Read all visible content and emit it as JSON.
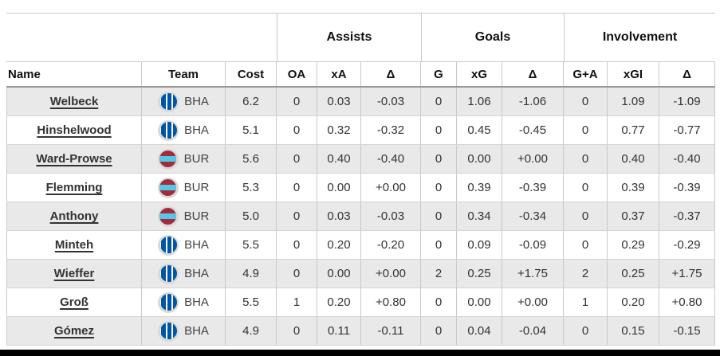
{
  "table": {
    "groups": [
      "Assists",
      "Goals",
      "Involvement"
    ],
    "columns": [
      "Name",
      "Team",
      "Cost",
      "OA",
      "xA",
      "Δ",
      "G",
      "xG",
      "Δ",
      "G+A",
      "xGI",
      "Δ"
    ],
    "rows": [
      {
        "name": "Welbeck",
        "team": "BHA",
        "cost": "6.2",
        "oa": "0",
        "xa": "0.03",
        "a_delta": "-0.03",
        "g": "0",
        "xg": "1.06",
        "g_delta": "-1.06",
        "gpa": "0",
        "xgi": "1.09",
        "i_delta": "-1.09"
      },
      {
        "name": "Hinshelwood",
        "team": "BHA",
        "cost": "5.1",
        "oa": "0",
        "xa": "0.32",
        "a_delta": "-0.32",
        "g": "0",
        "xg": "0.45",
        "g_delta": "-0.45",
        "gpa": "0",
        "xgi": "0.77",
        "i_delta": "-0.77"
      },
      {
        "name": "Ward-Prowse",
        "team": "BUR",
        "cost": "5.6",
        "oa": "0",
        "xa": "0.40",
        "a_delta": "-0.40",
        "g": "0",
        "xg": "0.00",
        "g_delta": "+0.00",
        "gpa": "0",
        "xgi": "0.40",
        "i_delta": "-0.40"
      },
      {
        "name": "Flemming",
        "team": "BUR",
        "cost": "5.3",
        "oa": "0",
        "xa": "0.00",
        "a_delta": "+0.00",
        "g": "0",
        "xg": "0.39",
        "g_delta": "-0.39",
        "gpa": "0",
        "xgi": "0.39",
        "i_delta": "-0.39"
      },
      {
        "name": "Anthony",
        "team": "BUR",
        "cost": "5.0",
        "oa": "0",
        "xa": "0.03",
        "a_delta": "-0.03",
        "g": "0",
        "xg": "0.34",
        "g_delta": "-0.34",
        "gpa": "0",
        "xgi": "0.37",
        "i_delta": "-0.37"
      },
      {
        "name": "Minteh",
        "team": "BHA",
        "cost": "5.5",
        "oa": "0",
        "xa": "0.20",
        "a_delta": "-0.20",
        "g": "0",
        "xg": "0.09",
        "g_delta": "-0.09",
        "gpa": "0",
        "xgi": "0.29",
        "i_delta": "-0.29"
      },
      {
        "name": "Wieffer",
        "team": "BHA",
        "cost": "4.9",
        "oa": "0",
        "xa": "0.00",
        "a_delta": "+0.00",
        "g": "2",
        "xg": "0.25",
        "g_delta": "+1.75",
        "gpa": "2",
        "xgi": "0.25",
        "i_delta": "+1.75"
      },
      {
        "name": "Groß",
        "team": "BHA",
        "cost": "5.5",
        "oa": "1",
        "xa": "0.20",
        "a_delta": "+0.80",
        "g": "0",
        "xg": "0.00",
        "g_delta": "+0.00",
        "gpa": "1",
        "xgi": "0.20",
        "i_delta": "+0.80"
      },
      {
        "name": "Gómez",
        "team": "BHA",
        "cost": "4.9",
        "oa": "0",
        "xa": "0.11",
        "a_delta": "-0.11",
        "g": "0",
        "xg": "0.04",
        "g_delta": "-0.04",
        "gpa": "0",
        "xgi": "0.15",
        "i_delta": "-0.15"
      }
    ]
  },
  "colors": {
    "row_alt": "#e9e9e9",
    "badge_ring": "#d9d9d9",
    "bha_blue": "#0055a5",
    "bur_claret": "#a22c3b",
    "bur_band": "#55c8e8"
  }
}
